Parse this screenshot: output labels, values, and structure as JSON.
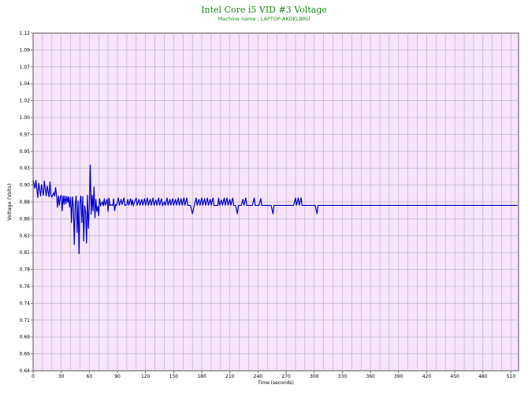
{
  "chart_data": {
    "type": "line",
    "title": "Intel Core i5 VID #3 Voltage",
    "subtitle": "Machine name : LAPTOP-AKDKLBRU",
    "xlabel": "Time (seconds)",
    "ylabel": "Voltage (Volts)",
    "xlim": [
      0,
      518
    ],
    "ylim": [
      0.64,
      1.12
    ],
    "x_ticks": [
      "0",
      "30",
      "60",
      "90",
      "120",
      "150",
      "180",
      "210",
      "240",
      "270",
      "300",
      "330",
      "360",
      "390",
      "420",
      "450",
      "480",
      "510"
    ],
    "y_ticks": [
      "0.64",
      "0.66",
      "0.69",
      "0.71",
      "0.74",
      "0.76",
      "0.78",
      "0.81",
      "0.83",
      "0.86",
      "0.88",
      "0.90",
      "0.93",
      "0.95",
      "0.97",
      "1.00",
      "1.02",
      "1.04",
      "1.07",
      "1.09",
      "1.12"
    ],
    "grid": true,
    "legend": "none",
    "series": [
      {
        "color": "#0000cc",
        "points": [
          [
            0,
            0.911
          ],
          [
            2,
            0.899
          ],
          [
            3,
            0.911
          ],
          [
            5,
            0.886
          ],
          [
            6,
            0.907
          ],
          [
            8,
            0.888
          ],
          [
            9,
            0.905
          ],
          [
            11,
            0.889
          ],
          [
            12,
            0.91
          ],
          [
            14,
            0.888
          ],
          [
            15,
            0.903
          ],
          [
            17,
            0.887
          ],
          [
            18,
            0.909
          ],
          [
            19,
            0.889
          ],
          [
            20,
            0.887
          ],
          [
            22,
            0.893
          ],
          [
            23,
            0.888
          ],
          [
            24,
            0.901
          ],
          [
            25,
            0.889
          ],
          [
            26,
            0.872
          ],
          [
            27,
            0.889
          ],
          [
            28,
            0.875
          ],
          [
            29,
            0.887
          ],
          [
            30,
            0.889
          ],
          [
            31,
            0.867
          ],
          [
            32,
            0.889
          ],
          [
            33,
            0.876
          ],
          [
            34,
            0.889
          ],
          [
            35,
            0.877
          ],
          [
            36,
            0.888
          ],
          [
            37,
            0.879
          ],
          [
            38,
            0.888
          ],
          [
            39,
            0.872
          ],
          [
            40,
            0.887
          ],
          [
            41,
            0.85
          ],
          [
            42,
            0.888
          ],
          [
            43,
            0.873
          ],
          [
            44,
            0.819
          ],
          [
            45,
            0.878
          ],
          [
            46,
            0.889
          ],
          [
            47,
            0.836
          ],
          [
            48,
            0.882
          ],
          [
            49,
            0.806
          ],
          [
            50,
            0.879
          ],
          [
            51,
            0.889
          ],
          [
            52,
            0.85
          ],
          [
            53,
            0.888
          ],
          [
            54,
            0.824
          ],
          [
            55,
            0.875
          ],
          [
            56,
            0.866
          ],
          [
            57,
            0.821
          ],
          [
            58,
            0.89
          ],
          [
            59,
            0.842
          ],
          [
            60,
            0.874
          ],
          [
            61,
            0.933
          ],
          [
            62,
            0.862
          ],
          [
            63,
            0.89
          ],
          [
            64,
            0.867
          ],
          [
            65,
            0.902
          ],
          [
            66,
            0.857
          ],
          [
            67,
            0.884
          ],
          [
            68,
            0.866
          ],
          [
            69,
            0.874
          ],
          [
            70,
            0.86
          ],
          [
            71,
            0.885
          ],
          [
            72,
            0.875
          ],
          [
            74,
            0.88
          ],
          [
            75,
            0.874
          ],
          [
            76,
            0.885
          ],
          [
            77,
            0.875
          ],
          [
            79,
            0.884
          ],
          [
            80,
            0.866
          ],
          [
            81,
            0.886
          ],
          [
            82,
            0.875
          ],
          [
            84,
            0.876
          ],
          [
            85,
            0.875
          ],
          [
            86,
            0.885
          ],
          [
            87,
            0.867
          ],
          [
            88,
            0.876
          ],
          [
            89,
            0.875
          ],
          [
            90,
            0.88
          ],
          [
            91,
            0.886
          ],
          [
            92,
            0.875
          ],
          [
            94,
            0.884
          ],
          [
            95,
            0.876
          ],
          [
            97,
            0.886
          ],
          [
            98,
            0.875
          ],
          [
            100,
            0.876
          ],
          [
            101,
            0.884
          ],
          [
            102,
            0.875
          ],
          [
            104,
            0.885
          ],
          [
            105,
            0.875
          ],
          [
            106,
            0.883
          ],
          [
            107,
            0.875
          ],
          [
            110,
            0.886
          ],
          [
            111,
            0.875
          ],
          [
            113,
            0.884
          ],
          [
            114,
            0.875
          ],
          [
            116,
            0.884
          ],
          [
            117,
            0.875
          ],
          [
            119,
            0.885
          ],
          [
            120,
            0.875
          ],
          [
            122,
            0.886
          ],
          [
            123,
            0.875
          ],
          [
            125,
            0.884
          ],
          [
            126,
            0.875
          ],
          [
            128,
            0.886
          ],
          [
            129,
            0.875
          ],
          [
            131,
            0.883
          ],
          [
            132,
            0.875
          ],
          [
            134,
            0.886
          ],
          [
            135,
            0.875
          ],
          [
            137,
            0.885
          ],
          [
            138,
            0.875
          ],
          [
            140,
            0.88
          ],
          [
            141,
            0.875
          ],
          [
            143,
            0.886
          ],
          [
            144,
            0.875
          ],
          [
            146,
            0.884
          ],
          [
            147,
            0.875
          ],
          [
            149,
            0.885
          ],
          [
            150,
            0.875
          ],
          [
            152,
            0.884
          ],
          [
            153,
            0.875
          ],
          [
            155,
            0.886
          ],
          [
            156,
            0.875
          ],
          [
            158,
            0.885
          ],
          [
            159,
            0.875
          ],
          [
            161,
            0.886
          ],
          [
            162,
            0.875
          ],
          [
            164,
            0.886
          ],
          [
            165,
            0.875
          ],
          [
            168,
            0.875
          ],
          [
            170,
            0.863
          ],
          [
            172,
            0.875
          ],
          [
            174,
            0.886
          ],
          [
            175,
            0.875
          ],
          [
            177,
            0.884
          ],
          [
            178,
            0.875
          ],
          [
            180,
            0.886
          ],
          [
            181,
            0.875
          ],
          [
            183,
            0.885
          ],
          [
            184,
            0.875
          ],
          [
            186,
            0.886
          ],
          [
            187,
            0.875
          ],
          [
            189,
            0.884
          ],
          [
            190,
            0.875
          ],
          [
            192,
            0.886
          ],
          [
            193,
            0.875
          ],
          [
            195,
            0.875
          ],
          [
            197,
            0.875
          ],
          [
            198,
            0.886
          ],
          [
            199,
            0.875
          ],
          [
            201,
            0.883
          ],
          [
            202,
            0.875
          ],
          [
            204,
            0.886
          ],
          [
            205,
            0.875
          ],
          [
            207,
            0.886
          ],
          [
            208,
            0.875
          ],
          [
            210,
            0.884
          ],
          [
            211,
            0.875
          ],
          [
            213,
            0.886
          ],
          [
            214,
            0.875
          ],
          [
            216,
            0.875
          ],
          [
            218,
            0.863
          ],
          [
            219,
            0.875
          ],
          [
            222,
            0.875
          ],
          [
            224,
            0.884
          ],
          [
            225,
            0.875
          ],
          [
            227,
            0.886
          ],
          [
            228,
            0.875
          ],
          [
            230,
            0.875
          ],
          [
            232,
            0.875
          ],
          [
            234,
            0.875
          ],
          [
            236,
            0.886
          ],
          [
            237,
            0.875
          ],
          [
            239,
            0.875
          ],
          [
            241,
            0.875
          ],
          [
            243,
            0.885
          ],
          [
            244,
            0.875
          ],
          [
            246,
            0.875
          ],
          [
            248,
            0.875
          ],
          [
            250,
            0.875
          ],
          [
            252,
            0.875
          ],
          [
            254,
            0.875
          ],
          [
            256,
            0.863
          ],
          [
            257,
            0.875
          ],
          [
            260,
            0.875
          ],
          [
            262,
            0.875
          ],
          [
            264,
            0.875
          ],
          [
            266,
            0.875
          ],
          [
            268,
            0.875
          ],
          [
            270,
            0.875
          ],
          [
            272,
            0.875
          ],
          [
            274,
            0.875
          ],
          [
            276,
            0.875
          ],
          [
            278,
            0.875
          ],
          [
            280,
            0.886
          ],
          [
            281,
            0.875
          ],
          [
            283,
            0.886
          ],
          [
            284,
            0.875
          ],
          [
            286,
            0.886
          ],
          [
            287,
            0.875
          ],
          [
            289,
            0.875
          ],
          [
            291,
            0.875
          ],
          [
            293,
            0.875
          ],
          [
            295,
            0.875
          ],
          [
            297,
            0.875
          ],
          [
            299,
            0.875
          ],
          [
            301,
            0.875
          ],
          [
            303,
            0.863
          ],
          [
            304,
            0.875
          ],
          [
            307,
            0.875
          ],
          [
            309,
            0.875
          ],
          [
            311,
            0.875
          ],
          [
            313,
            0.875
          ],
          [
            315,
            0.875
          ],
          [
            317,
            0.875
          ],
          [
            319,
            0.875
          ],
          [
            321,
            0.875
          ],
          [
            323,
            0.875
          ],
          [
            325,
            0.875
          ],
          [
            327,
            0.875
          ],
          [
            329,
            0.875
          ],
          [
            331,
            0.875
          ],
          [
            333,
            0.875
          ],
          [
            335,
            0.875
          ],
          [
            337,
            0.875
          ],
          [
            339,
            0.875
          ],
          [
            341,
            0.875
          ],
          [
            343,
            0.875
          ],
          [
            345,
            0.875
          ],
          [
            347,
            0.875
          ],
          [
            349,
            0.875
          ],
          [
            351,
            0.875
          ],
          [
            353,
            0.875
          ],
          [
            355,
            0.875
          ],
          [
            357,
            0.875
          ],
          [
            359,
            0.875
          ],
          [
            361,
            0.875
          ],
          [
            363,
            0.875
          ],
          [
            365,
            0.875
          ],
          [
            367,
            0.875
          ],
          [
            369,
            0.875
          ],
          [
            371,
            0.875
          ],
          [
            373,
            0.875
          ],
          [
            375,
            0.875
          ],
          [
            377,
            0.875
          ],
          [
            379,
            0.875
          ],
          [
            381,
            0.875
          ],
          [
            383,
            0.875
          ],
          [
            385,
            0.875
          ],
          [
            387,
            0.875
          ],
          [
            389,
            0.875
          ],
          [
            391,
            0.875
          ],
          [
            393,
            0.875
          ],
          [
            395,
            0.875
          ],
          [
            397,
            0.875
          ],
          [
            399,
            0.875
          ],
          [
            401,
            0.875
          ],
          [
            403,
            0.875
          ],
          [
            405,
            0.875
          ],
          [
            407,
            0.875
          ],
          [
            409,
            0.875
          ],
          [
            411,
            0.875
          ],
          [
            413,
            0.875
          ],
          [
            415,
            0.875
          ],
          [
            417,
            0.875
          ],
          [
            419,
            0.875
          ],
          [
            421,
            0.875
          ],
          [
            423,
            0.875
          ],
          [
            425,
            0.875
          ],
          [
            427,
            0.875
          ],
          [
            429,
            0.875
          ],
          [
            431,
            0.875
          ],
          [
            433,
            0.875
          ],
          [
            435,
            0.875
          ],
          [
            437,
            0.875
          ],
          [
            439,
            0.875
          ],
          [
            441,
            0.875
          ],
          [
            443,
            0.875
          ],
          [
            445,
            0.875
          ],
          [
            447,
            0.875
          ],
          [
            449,
            0.875
          ],
          [
            451,
            0.875
          ],
          [
            453,
            0.875
          ],
          [
            455,
            0.875
          ],
          [
            457,
            0.875
          ],
          [
            459,
            0.875
          ],
          [
            461,
            0.875
          ],
          [
            463,
            0.875
          ],
          [
            465,
            0.875
          ],
          [
            467,
            0.875
          ],
          [
            469,
            0.875
          ],
          [
            471,
            0.875
          ],
          [
            473,
            0.875
          ],
          [
            475,
            0.875
          ],
          [
            477,
            0.875
          ],
          [
            479,
            0.875
          ],
          [
            481,
            0.875
          ],
          [
            483,
            0.875
          ],
          [
            485,
            0.875
          ],
          [
            487,
            0.875
          ],
          [
            489,
            0.875
          ],
          [
            491,
            0.875
          ],
          [
            493,
            0.875
          ],
          [
            495,
            0.875
          ],
          [
            497,
            0.875
          ],
          [
            499,
            0.875
          ],
          [
            501,
            0.875
          ],
          [
            503,
            0.875
          ],
          [
            505,
            0.875
          ],
          [
            507,
            0.875
          ],
          [
            509,
            0.875
          ],
          [
            511,
            0.875
          ],
          [
            513,
            0.875
          ],
          [
            515,
            0.875
          ],
          [
            517,
            0.875
          ]
        ]
      }
    ]
  }
}
